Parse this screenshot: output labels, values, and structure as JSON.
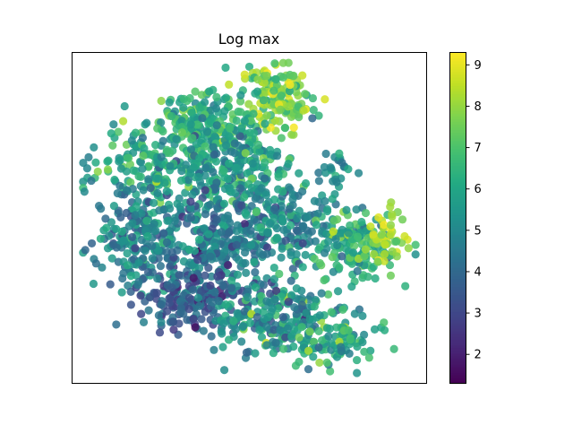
{
  "chart_data": {
    "type": "scatter",
    "title": "Log max",
    "xlabel": "",
    "ylabel": "",
    "axes_ticks_visible": false,
    "colormap": "viridis",
    "colorbar": {
      "range": [
        1.3,
        9.3
      ],
      "ticks": [
        2,
        3,
        4,
        5,
        6,
        7,
        8,
        9
      ],
      "tick_labels": [
        "2",
        "3",
        "4",
        "5",
        "6",
        "7",
        "8",
        "9"
      ]
    },
    "point_alpha": 0.85,
    "approx_point_count": 2000,
    "clusters": [
      {
        "cx": 0.58,
        "cy": 0.86,
        "sx": 0.05,
        "sy": 0.05,
        "n": 160,
        "mean": 7.6,
        "sd": 0.9
      },
      {
        "cx": 0.37,
        "cy": 0.78,
        "sx": 0.07,
        "sy": 0.05,
        "n": 200,
        "mean": 6.3,
        "sd": 0.8
      },
      {
        "cx": 0.22,
        "cy": 0.66,
        "sx": 0.08,
        "sy": 0.06,
        "n": 150,
        "mean": 6.0,
        "sd": 0.8
      },
      {
        "cx": 0.48,
        "cy": 0.64,
        "sx": 0.08,
        "sy": 0.07,
        "n": 220,
        "mean": 5.6,
        "sd": 0.9
      },
      {
        "cx": 0.75,
        "cy": 0.65,
        "sx": 0.03,
        "sy": 0.03,
        "n": 25,
        "mean": 4.8,
        "sd": 0.7
      },
      {
        "cx": 0.2,
        "cy": 0.45,
        "sx": 0.07,
        "sy": 0.08,
        "n": 220,
        "mean": 4.8,
        "sd": 0.9
      },
      {
        "cx": 0.43,
        "cy": 0.42,
        "sx": 0.08,
        "sy": 0.08,
        "n": 260,
        "mean": 4.6,
        "sd": 0.9
      },
      {
        "cx": 0.62,
        "cy": 0.47,
        "sx": 0.06,
        "sy": 0.06,
        "n": 130,
        "mean": 5.0,
        "sd": 0.9
      },
      {
        "cx": 0.8,
        "cy": 0.42,
        "sx": 0.06,
        "sy": 0.05,
        "n": 150,
        "mean": 6.2,
        "sd": 1.0
      },
      {
        "cx": 0.9,
        "cy": 0.43,
        "sx": 0.03,
        "sy": 0.04,
        "n": 45,
        "mean": 8.3,
        "sd": 0.6
      },
      {
        "cx": 0.34,
        "cy": 0.25,
        "sx": 0.07,
        "sy": 0.05,
        "n": 170,
        "mean": 3.6,
        "sd": 0.8
      },
      {
        "cx": 0.57,
        "cy": 0.2,
        "sx": 0.08,
        "sy": 0.06,
        "n": 200,
        "mean": 5.3,
        "sd": 1.0
      },
      {
        "cx": 0.74,
        "cy": 0.12,
        "sx": 0.06,
        "sy": 0.04,
        "n": 100,
        "mean": 6.2,
        "sd": 1.0
      }
    ]
  }
}
